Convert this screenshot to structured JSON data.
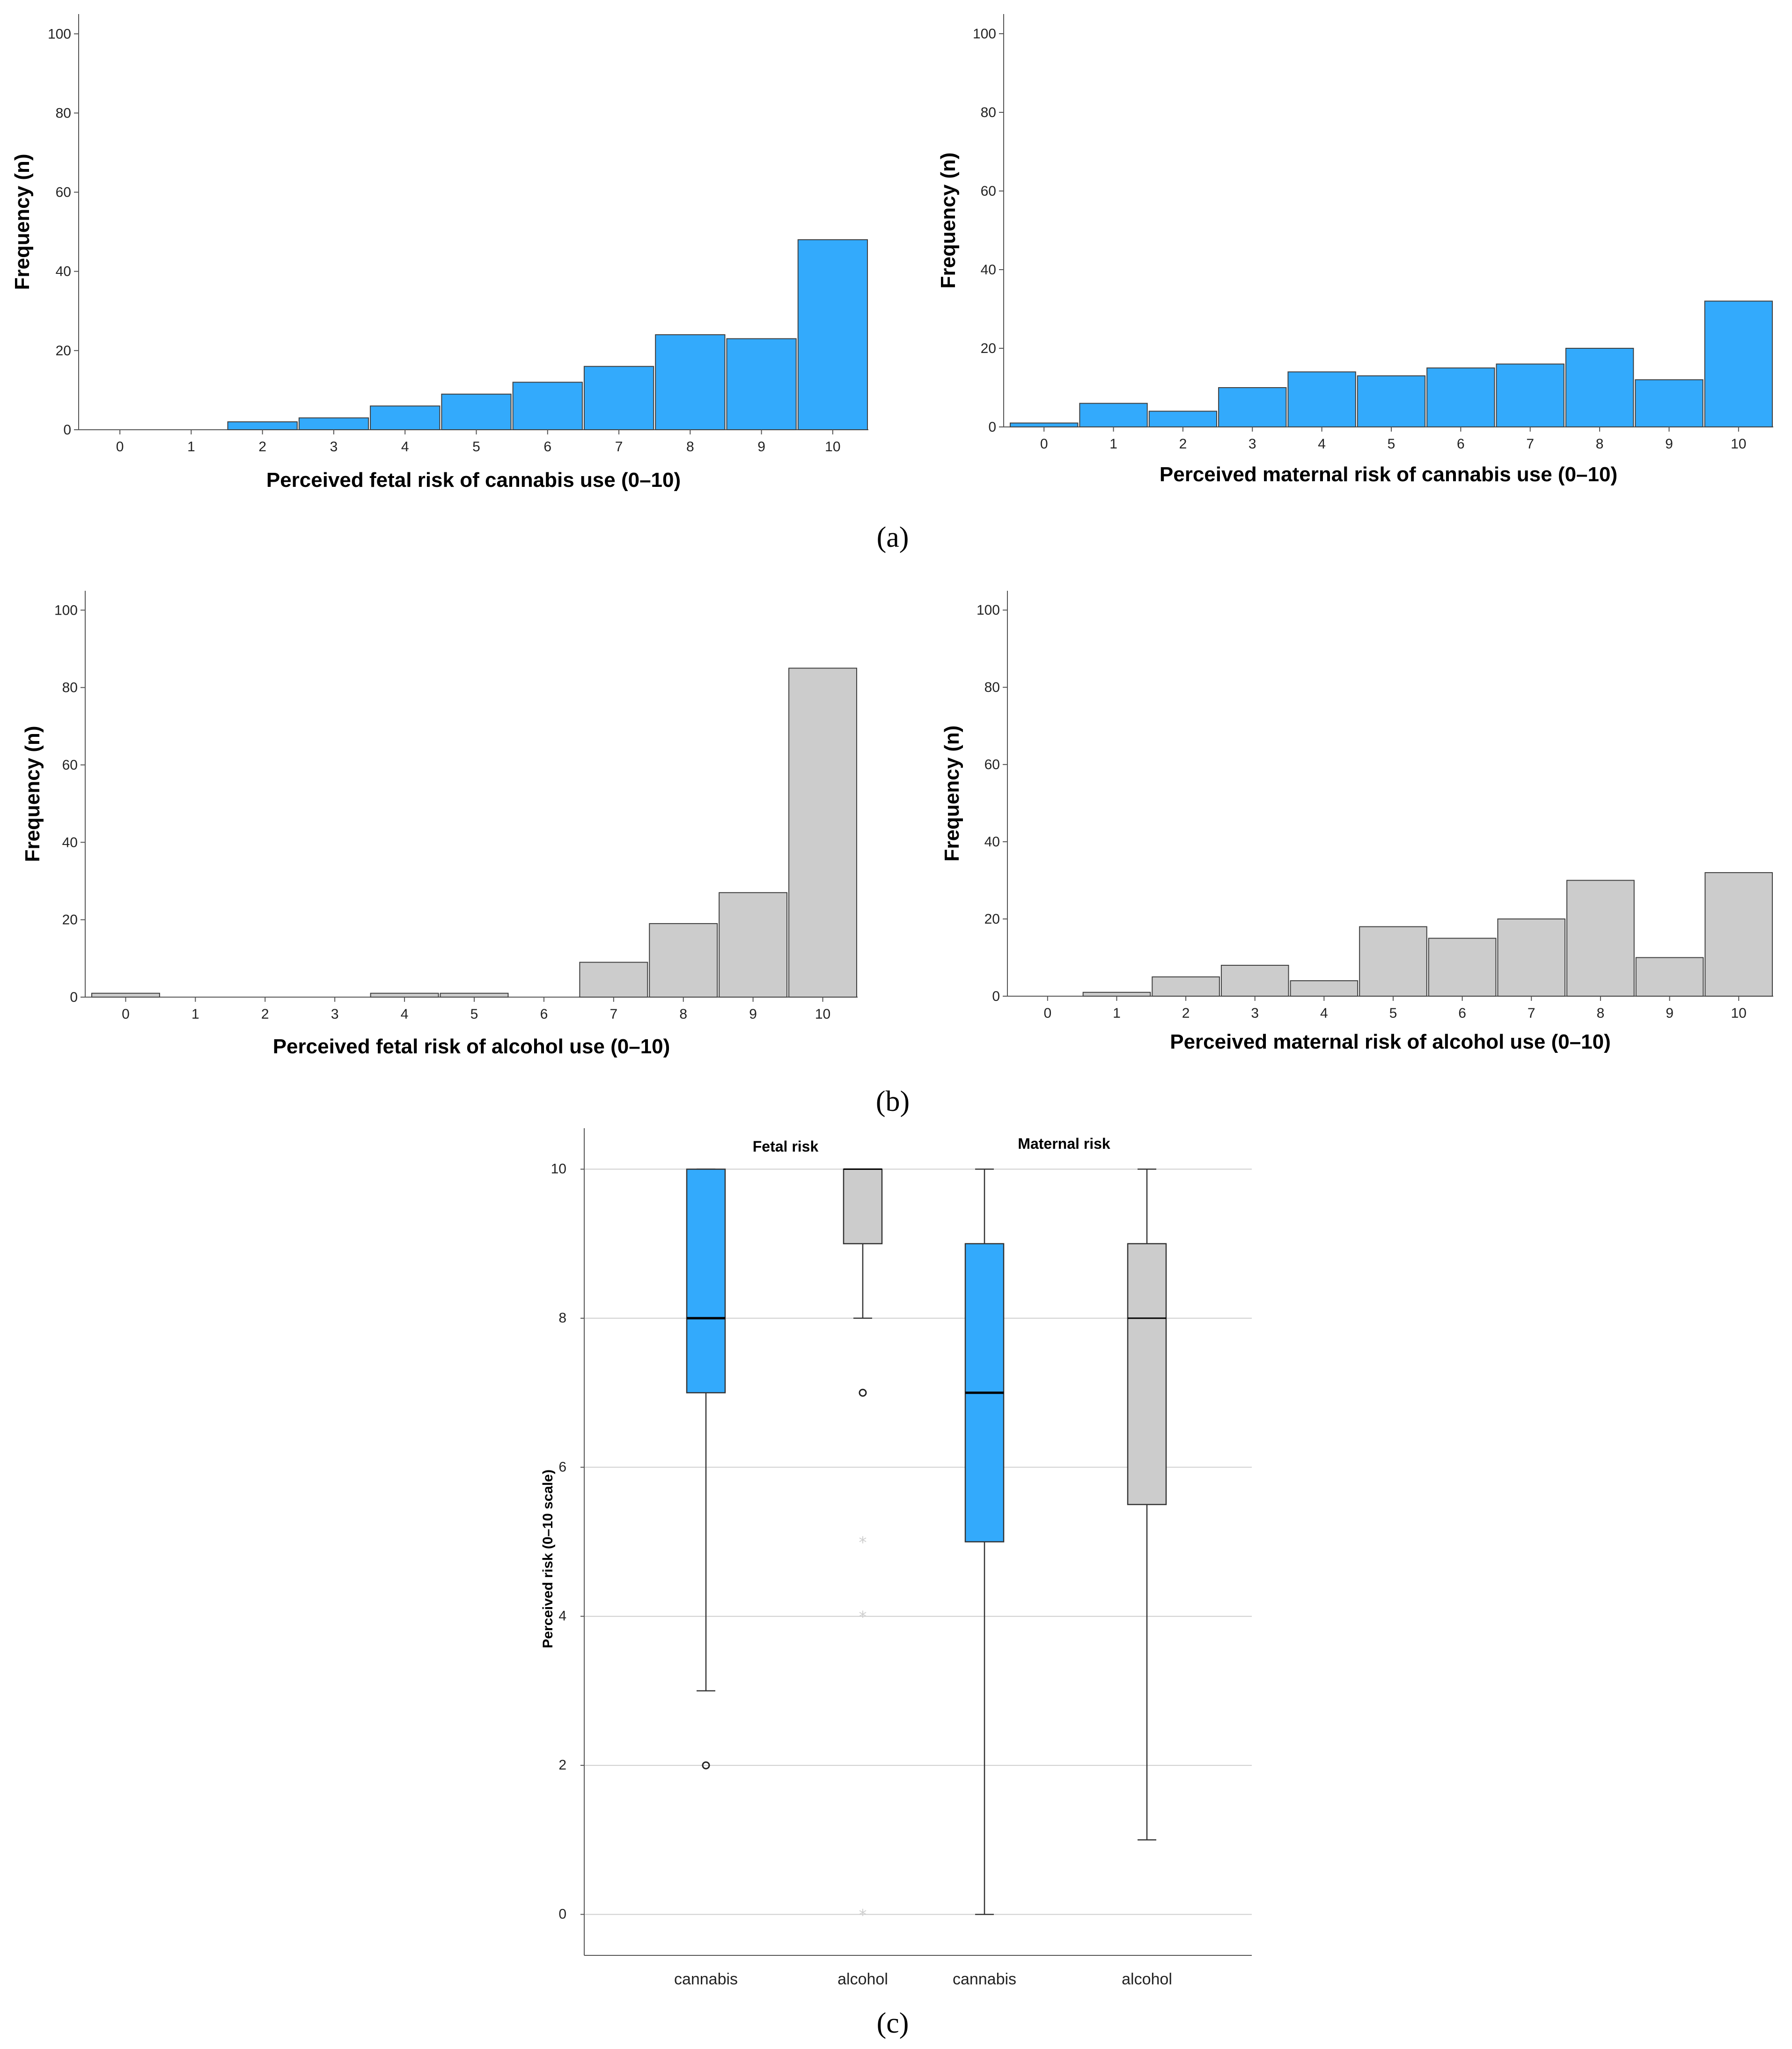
{
  "panels": {
    "a": "(a)",
    "b": "(b)",
    "c": "(c)"
  },
  "colors": {
    "cannabis": "#33aafc",
    "alcohol": "#cccccc",
    "edge": "#404040"
  },
  "chart_data": [
    {
      "type": "bar",
      "categories": [
        "0",
        "1",
        "2",
        "3",
        "4",
        "5",
        "6",
        "7",
        "8",
        "9",
        "10"
      ],
      "values": [
        0,
        0,
        2,
        3,
        6,
        9,
        12,
        16,
        24,
        23,
        48
      ],
      "xlabel": "Perceived fetal risk of cannabis use (0–10)",
      "ylabel": "Frequency (n)",
      "ylim": [
        0,
        105
      ],
      "yticks": [
        0,
        20,
        40,
        60,
        80,
        100
      ],
      "color": "#33aafc",
      "grid": false
    },
    {
      "type": "bar",
      "categories": [
        "0",
        "1",
        "2",
        "3",
        "4",
        "5",
        "6",
        "7",
        "8",
        "9",
        "10"
      ],
      "values": [
        1,
        6,
        4,
        10,
        14,
        13,
        15,
        16,
        20,
        12,
        32
      ],
      "xlabel": "Perceived maternal risk of cannabis use (0–10)",
      "ylabel": "Frequency (n)",
      "ylim": [
        0,
        105
      ],
      "yticks": [
        0,
        20,
        40,
        60,
        80,
        100
      ],
      "color": "#33aafc",
      "grid": false
    },
    {
      "type": "bar",
      "categories": [
        "0",
        "1",
        "2",
        "3",
        "4",
        "5",
        "6",
        "7",
        "8",
        "9",
        "10"
      ],
      "values": [
        1,
        0,
        0,
        0,
        1,
        1,
        0,
        9,
        19,
        27,
        85
      ],
      "xlabel": "Perceived fetal risk of alcohol use (0–10)",
      "ylabel": "Frequency (n)",
      "ylim": [
        0,
        105
      ],
      "yticks": [
        0,
        20,
        40,
        60,
        80,
        100
      ],
      "color": "#cccccc",
      "grid": false
    },
    {
      "type": "bar",
      "categories": [
        "0",
        "1",
        "2",
        "3",
        "4",
        "5",
        "6",
        "7",
        "8",
        "9",
        "10"
      ],
      "values": [
        0,
        1,
        5,
        8,
        4,
        18,
        15,
        20,
        30,
        10,
        32
      ],
      "xlabel": "Perceived maternal risk of alcohol use (0–10)",
      "ylabel": "Frequency (n)",
      "ylim": [
        0,
        105
      ],
      "yticks": [
        0,
        20,
        40,
        60,
        80,
        100
      ],
      "color": "#cccccc",
      "grid": false
    },
    {
      "type": "box",
      "ylabel": "Perceived risk (0–10 scale)",
      "ylim": [
        -0.55,
        10.55
      ],
      "yticks": [
        0,
        2,
        4,
        6,
        8,
        10
      ],
      "grid": true,
      "groups": [
        "Fetal risk",
        "Maternal risk"
      ],
      "boxes": [
        {
          "label": "cannabis",
          "color": "#33aafc",
          "q1": 7,
          "median": 8,
          "q3": 10,
          "whisker_low": 3,
          "whisker_high": 10,
          "outliers": [
            2
          ],
          "extremes": []
        },
        {
          "label": "alcohol",
          "color": "#cccccc",
          "q1": 9,
          "median": 10,
          "q3": 10,
          "whisker_low": 8,
          "whisker_high": 10,
          "outliers": [
            7
          ],
          "extremes": [
            5,
            4,
            0
          ]
        },
        {
          "label": "cannabis",
          "color": "#33aafc",
          "q1": 5,
          "median": 7,
          "q3": 9,
          "whisker_low": 0,
          "whisker_high": 10,
          "outliers": [],
          "extremes": []
        },
        {
          "label": "alcohol",
          "color": "#cccccc",
          "q1": 5.5,
          "median": 8,
          "q3": 9,
          "whisker_low": 1,
          "whisker_high": 10,
          "outliers": [],
          "extremes": []
        }
      ]
    }
  ]
}
